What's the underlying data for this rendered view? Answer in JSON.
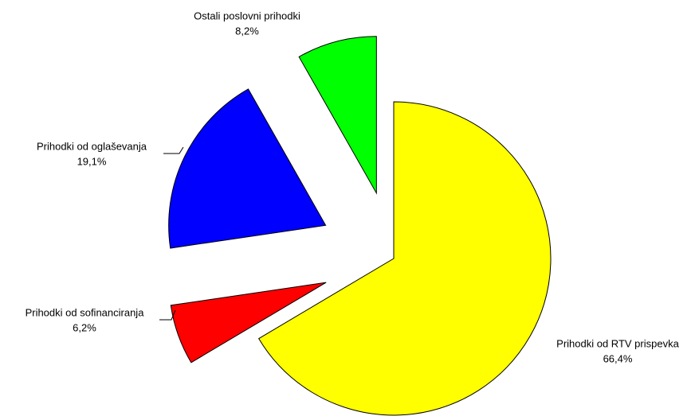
{
  "chart_data": {
    "type": "pie",
    "categories": [
      "Prihodki od RTV prispevka",
      "Prihodki od sofinanciranja",
      "Prihodki od oglaševanja",
      "Ostali poslovni prihodki"
    ],
    "values": [
      66.4,
      6.2,
      19.1,
      8.2
    ],
    "value_labels": [
      "66,4%",
      "6,2%",
      "19,1%",
      "8,2%"
    ],
    "colors": [
      "#ffff00",
      "#ff0000",
      "#0000ff",
      "#00ff00"
    ]
  }
}
